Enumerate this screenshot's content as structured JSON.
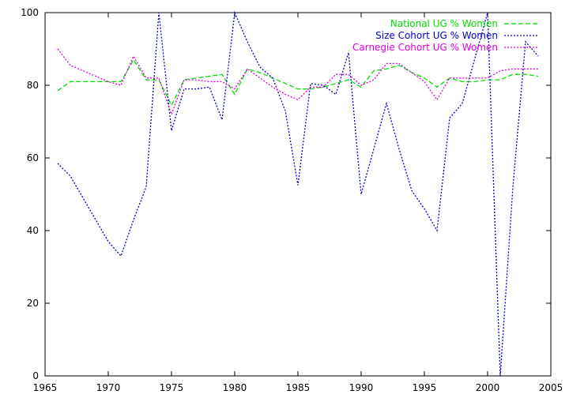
{
  "chart_data": {
    "type": "line",
    "title": "",
    "xlabel": "",
    "ylabel": "",
    "xlim": [
      1965,
      2005
    ],
    "ylim": [
      0,
      100
    ],
    "xticks": [
      1965,
      1970,
      1975,
      1980,
      1985,
      1990,
      1995,
      2000,
      2005
    ],
    "yticks": [
      0,
      20,
      40,
      60,
      80,
      100
    ],
    "grid": false,
    "legend_position": "top-right",
    "series": [
      {
        "name": "National UG % Women",
        "color": "#00dd00",
        "dash": "dashed",
        "x": [
          1966,
          1967,
          1968,
          1969,
          1970,
          1971,
          1972,
          1973,
          1974,
          1975,
          1976,
          1977,
          1978,
          1979,
          1980,
          1981,
          1982,
          1983,
          1984,
          1985,
          1986,
          1987,
          1988,
          1989,
          1990,
          1991,
          1992,
          1993,
          1994,
          1995,
          1996,
          1997,
          1998,
          1999,
          2000,
          2001,
          2002,
          2003,
          2004
        ],
        "values": [
          78.5,
          81,
          81,
          81,
          81,
          81,
          87,
          81.5,
          81.5,
          74.5,
          81.5,
          82,
          82.5,
          83,
          77.5,
          84.5,
          83.5,
          82,
          80.5,
          79,
          79,
          79.5,
          80.5,
          81.5,
          79.5,
          84,
          84.5,
          85.5,
          83.5,
          82,
          79.5,
          82,
          81,
          81,
          81.5,
          81.5,
          83,
          83,
          82.5
        ]
      },
      {
        "name": "Size Cohort UG % Women",
        "color": "#0000cc",
        "dash": "dotted",
        "x": [
          1966,
          1967,
          1968,
          1969,
          1970,
          1971,
          1972,
          1973,
          1974,
          1975,
          1976,
          1977,
          1978,
          1979,
          1980,
          1981,
          1982,
          1983,
          1984,
          1985,
          1986,
          1987,
          1988,
          1989,
          1990,
          1991,
          1992,
          1993,
          1994,
          1995,
          1996,
          1997,
          1998,
          1999,
          2000,
          2001,
          2002,
          2003,
          2004
        ],
        "values": [
          58.5,
          55,
          49,
          43,
          37,
          33,
          43,
          52,
          100,
          67.5,
          79,
          79,
          79.5,
          70.5,
          100,
          92,
          85,
          82,
          73,
          52.5,
          80.5,
          80,
          77.5,
          89,
          50,
          62.5,
          75,
          62.5,
          51,
          46,
          40,
          71,
          75,
          87.5,
          100,
          0,
          52,
          92,
          88
        ]
      },
      {
        "name": "Carnegie Cohort UG % Women",
        "color": "#dd00dd",
        "dash": "dotted",
        "x": [
          1966,
          1967,
          1968,
          1969,
          1970,
          1971,
          1972,
          1973,
          1974,
          1975,
          1976,
          1977,
          1978,
          1979,
          1980,
          1981,
          1982,
          1983,
          1984,
          1985,
          1986,
          1987,
          1988,
          1989,
          1990,
          1991,
          1992,
          1993,
          1994,
          1995,
          1996,
          1997,
          1998,
          1999,
          2000,
          2001,
          2002,
          2003,
          2004
        ],
        "values": [
          90,
          85.5,
          84,
          82.5,
          81,
          80,
          88,
          82,
          82,
          72,
          81.5,
          81.5,
          81,
          81,
          79,
          84.5,
          82,
          79.5,
          77.5,
          76,
          79.5,
          79.5,
          83,
          83,
          80,
          81.5,
          86,
          86,
          83.5,
          81,
          76,
          82,
          82,
          82,
          82,
          84,
          84.5,
          84.5,
          84.5
        ]
      }
    ]
  }
}
